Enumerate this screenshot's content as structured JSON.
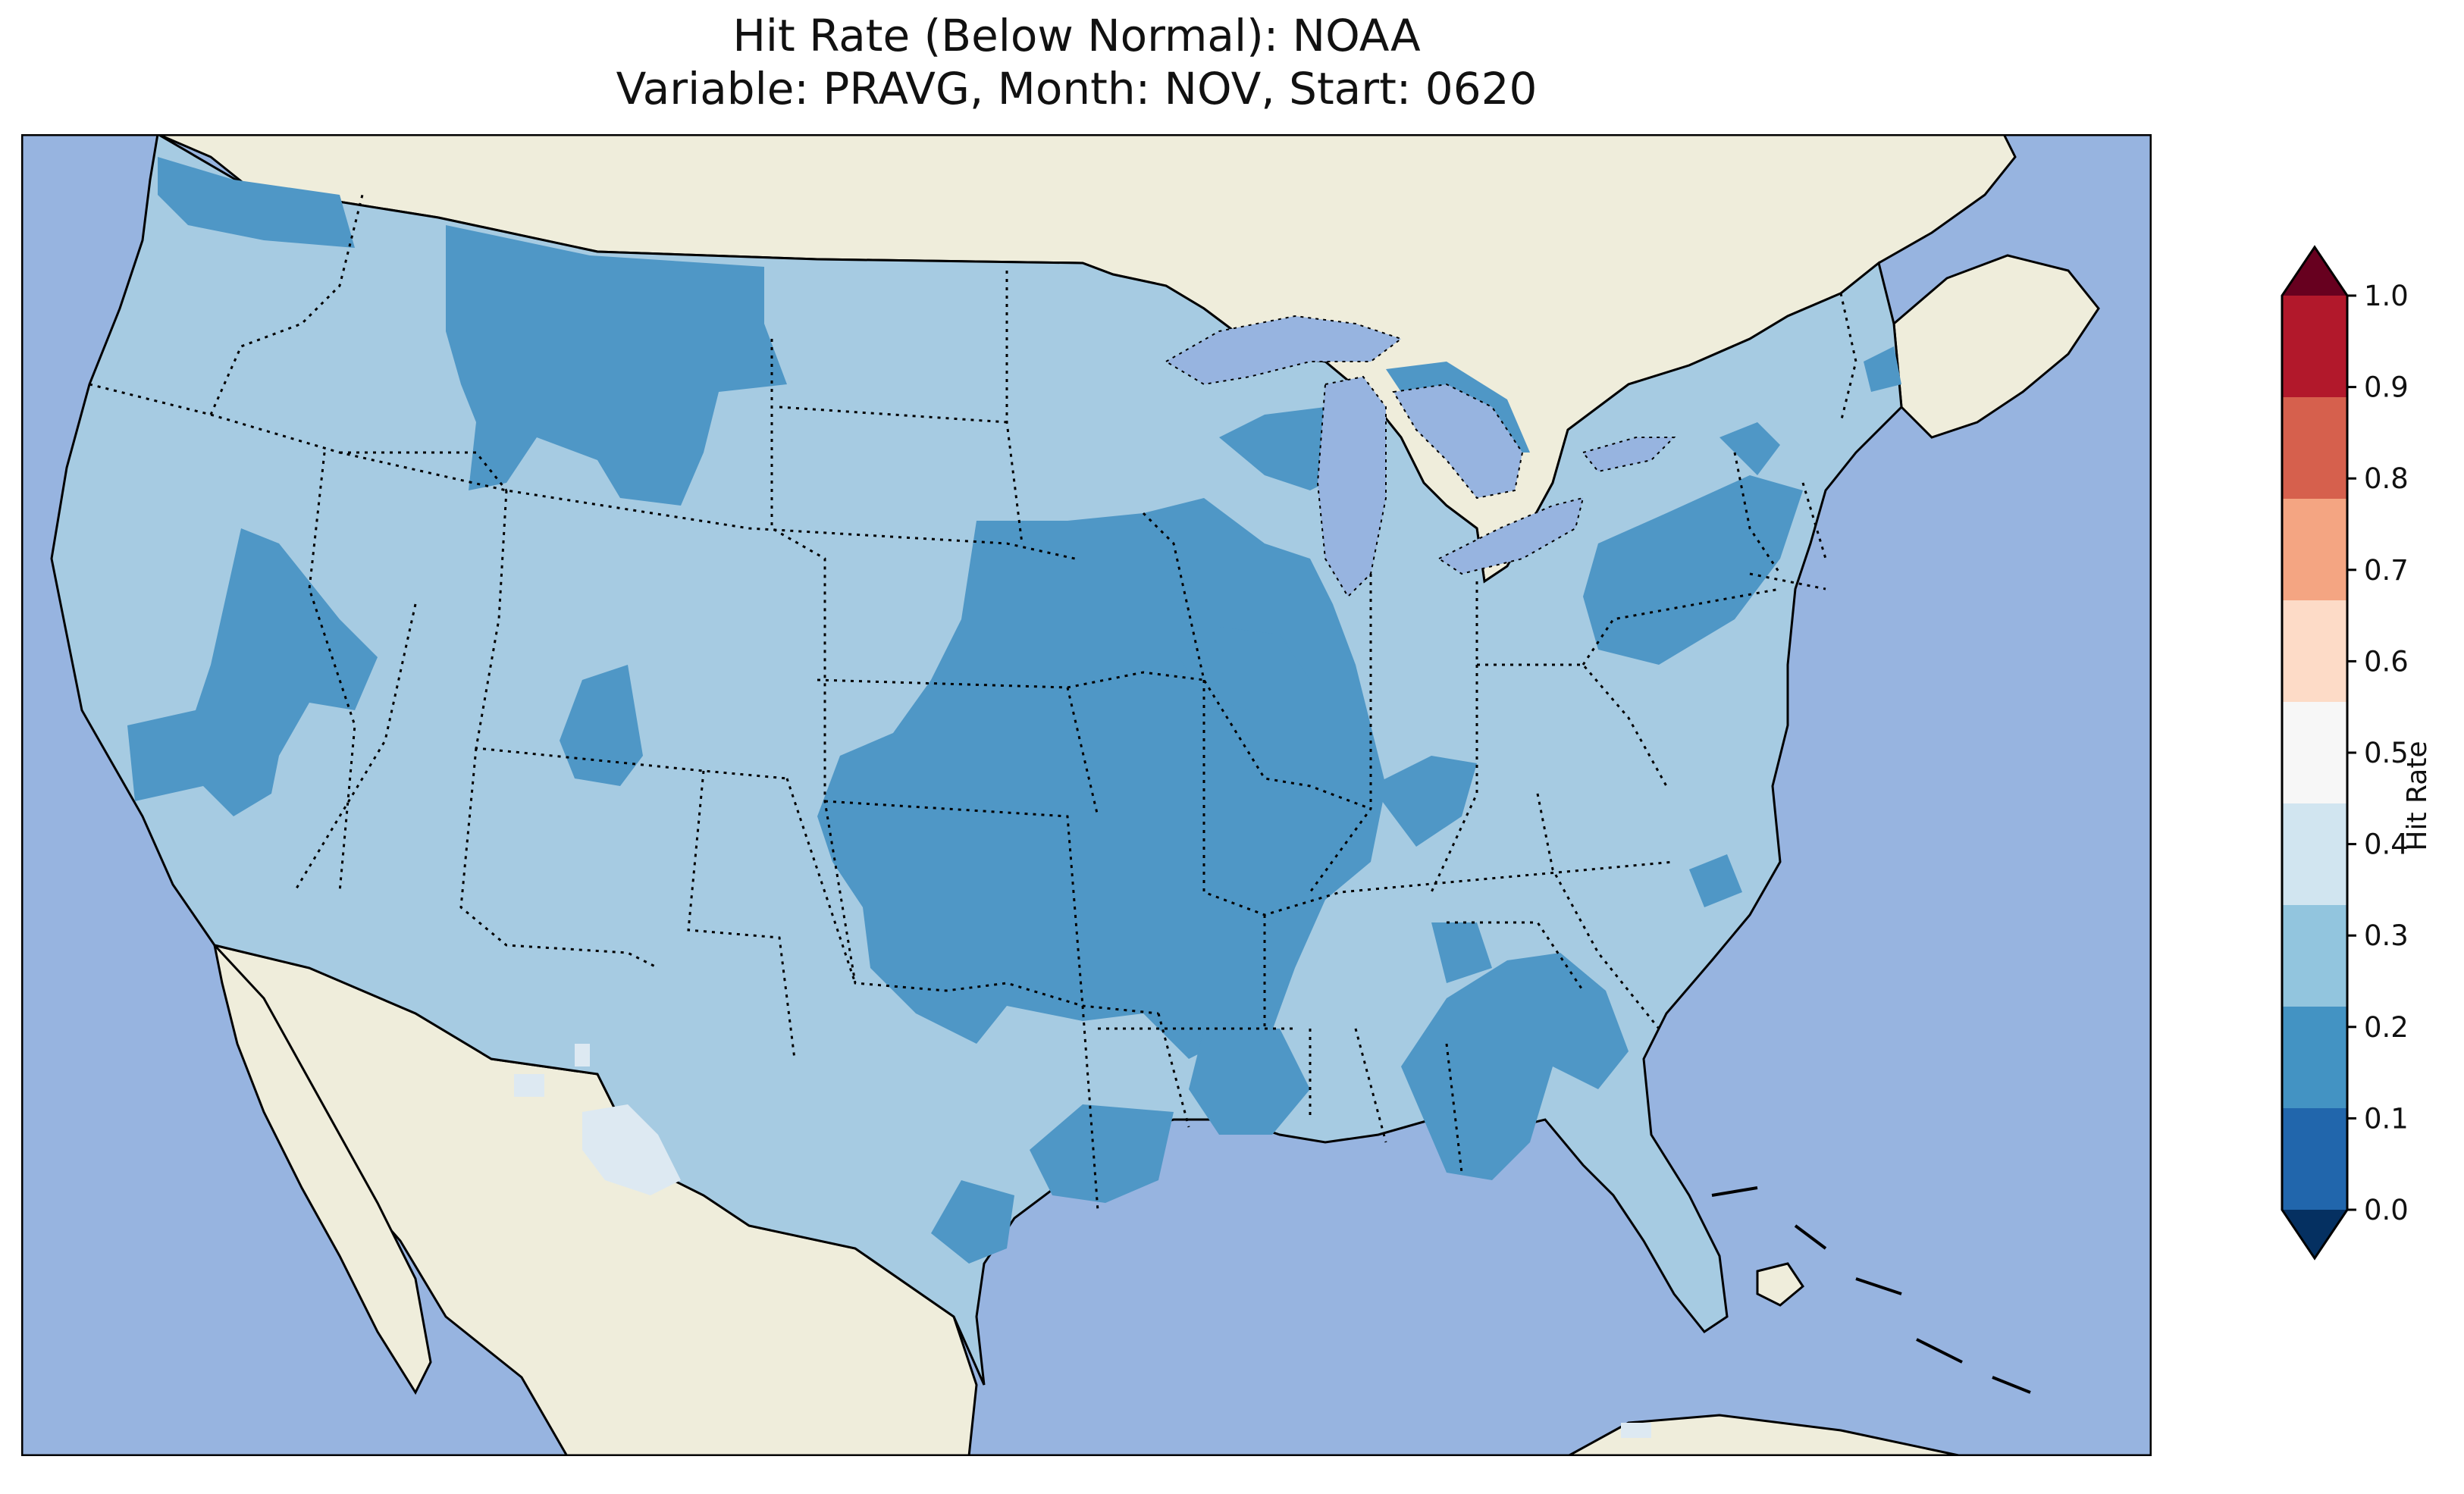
{
  "title": {
    "line1": "Hit Rate (Below Normal): NOAA",
    "line2": "Variable: PRAVG, Month: NOV, Start: 0620"
  },
  "map": {
    "region": "Contiguous United States",
    "colors": {
      "ocean": "#97b4e0",
      "land": "#efeddb",
      "lakes": "#97b4e0",
      "coastline": "#000000",
      "borders": "#000000"
    },
    "dominant_classes": [
      "0.2-0.3",
      "0.3-0.4"
    ],
    "scattered_classes": [
      "0.4-0.5"
    ]
  },
  "colorbar": {
    "label": "Hit Rate",
    "ticks": [
      "0.0",
      "0.1",
      "0.2",
      "0.3",
      "0.4",
      "0.5",
      "0.6",
      "0.7",
      "0.8",
      "0.9",
      "1.0"
    ],
    "colors": [
      "#053061",
      "#2166ac",
      "#4393c3",
      "#92c5de",
      "#d1e5f0",
      "#f7f7f7",
      "#fddbc7",
      "#f4a582",
      "#d6604d",
      "#b2182b",
      "#67001f"
    ],
    "extend": "both"
  }
}
